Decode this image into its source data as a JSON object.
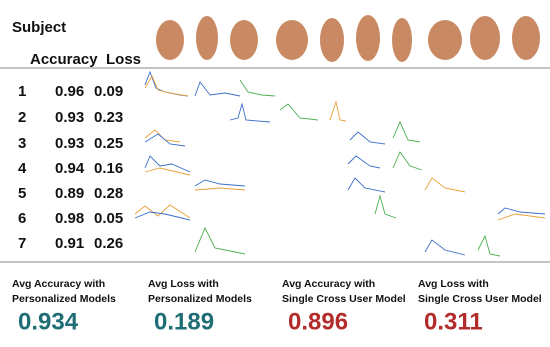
{
  "header": {
    "subject": "Subject",
    "accuracy": "Accuracy",
    "loss": "Loss"
  },
  "rows": [
    [
      1,
      0.96,
      0.09
    ],
    [
      2,
      0.93,
      0.23
    ],
    [
      3,
      0.93,
      0.25
    ],
    [
      4,
      0.94,
      0.16
    ],
    [
      5,
      0.89,
      0.28
    ],
    [
      6,
      0.98,
      0.05
    ],
    [
      7,
      0.91,
      0.26
    ]
  ],
  "summary": [
    {
      "label_lines": [
        "Avg Accuracy with",
        "Personalized Models"
      ],
      "value": 0.934
    },
    {
      "label_lines": [
        "Avg Loss with",
        "Personalized Models"
      ],
      "value": 0.189
    },
    {
      "label_lines": [
        "Avg Accuracy with",
        "Single Cross User Model"
      ],
      "value": 0.896
    },
    {
      "label_lines": [
        "Avg Loss with",
        "Single Cross User Model"
      ],
      "value": 0.311
    }
  ]
}
